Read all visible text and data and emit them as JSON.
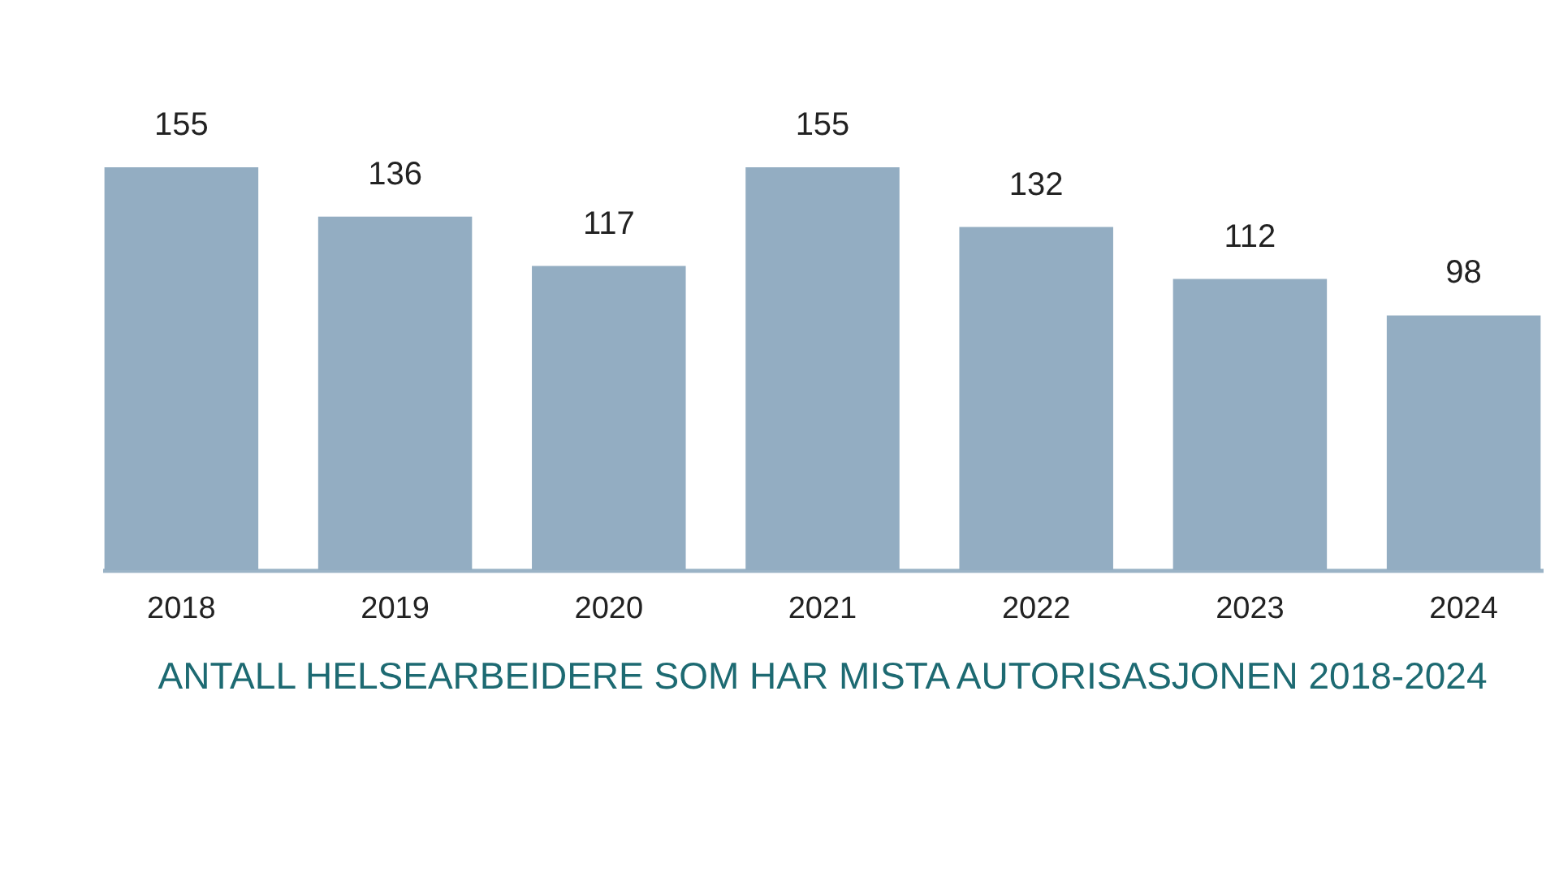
{
  "chart_data": {
    "type": "bar",
    "title": "ANTALL HELSEARBEIDERE SOM HAR MISTA AUTORISASJONEN 2018-2024",
    "categories": [
      "2018",
      "2019",
      "2020",
      "2021",
      "2022",
      "2023",
      "2024"
    ],
    "values": [
      155,
      136,
      117,
      155,
      132,
      112,
      98
    ],
    "color": "#93adc2",
    "data_labels": true
  }
}
